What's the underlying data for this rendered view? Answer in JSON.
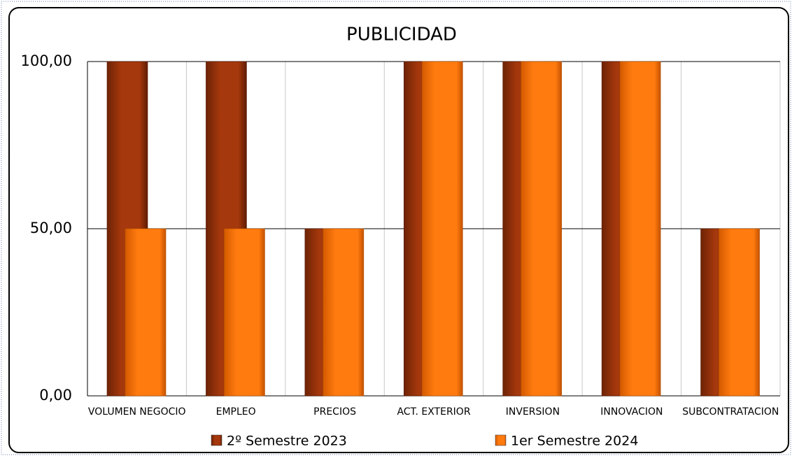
{
  "chart_data": {
    "type": "bar",
    "title": "PUBLICIDAD",
    "categories": [
      "VOLUMEN NEGOCIO",
      "EMPLEO",
      "PRECIOS",
      "ACT. EXTERIOR",
      "INVERSION",
      "INNOVACION",
      "SUBCONTRATACION"
    ],
    "series": [
      {
        "name": "2º Semestre 2023",
        "color": "#a5380c",
        "values": [
          100,
          100,
          50,
          100,
          100,
          100,
          50
        ]
      },
      {
        "name": "1er Semestre 2024",
        "color": "#ff7b0f",
        "values": [
          50,
          50,
          50,
          100,
          100,
          100,
          50
        ]
      }
    ],
    "ylim": [
      0,
      100
    ],
    "yticks": [
      {
        "value": 0,
        "label": "0,00"
      },
      {
        "value": 50,
        "label": "50,00"
      },
      {
        "value": 100,
        "label": "100,00"
      }
    ],
    "grid": true,
    "legend": "bottom"
  }
}
